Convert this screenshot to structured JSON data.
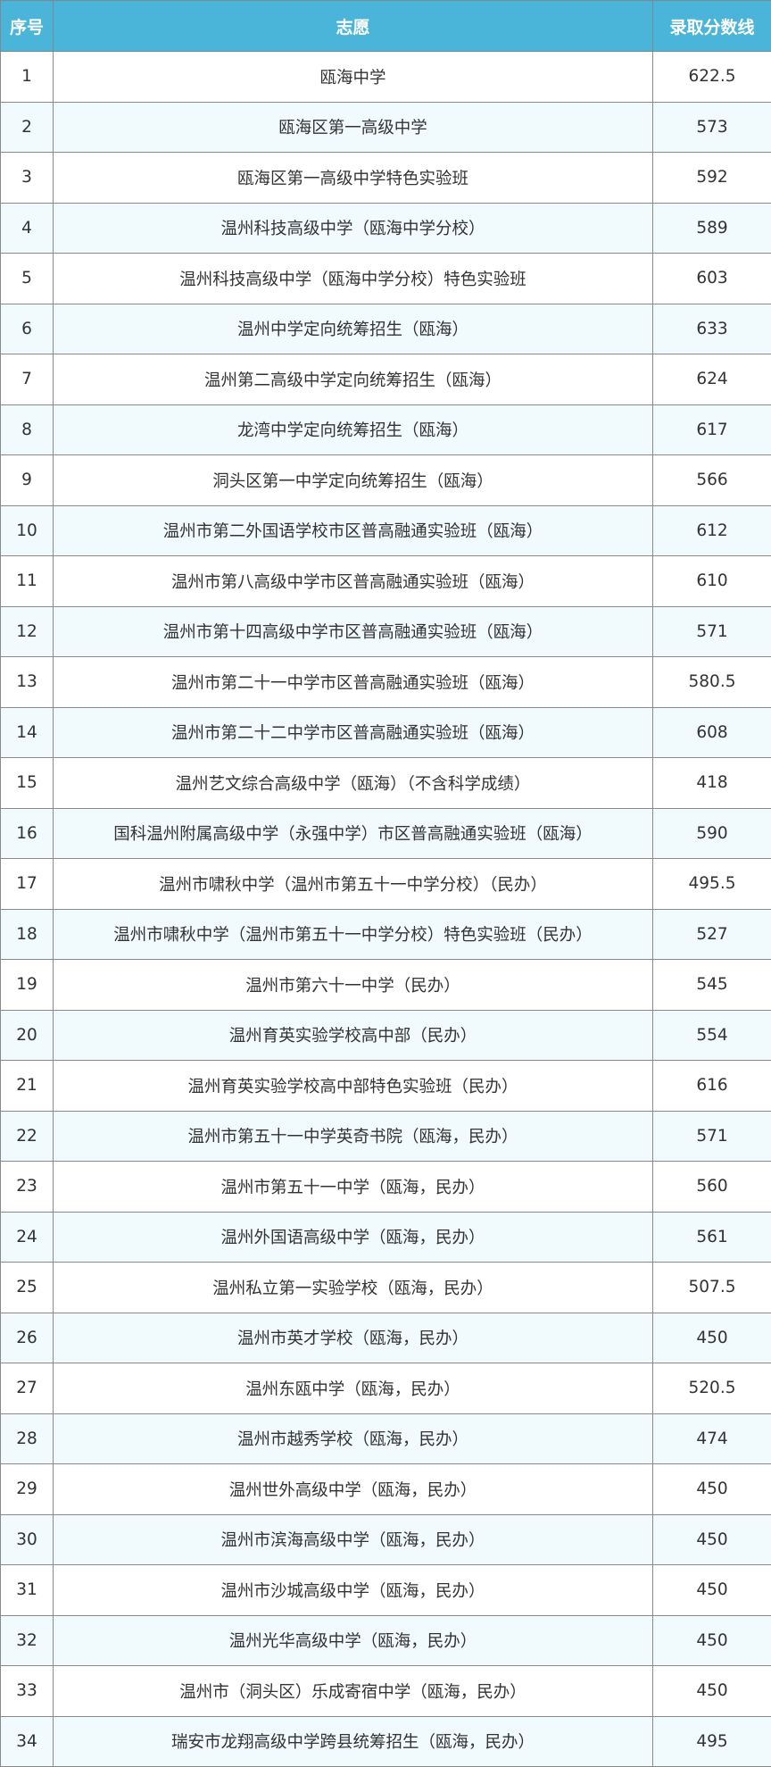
{
  "header": {
    "index": "序号",
    "choice": "志愿",
    "score": "录取分数线"
  },
  "colors": {
    "header_bg": "#4bb4d9",
    "row_alt": "#f1fafc"
  },
  "rows": [
    {
      "no": "1",
      "name": "瓯海中学",
      "score": "622.5"
    },
    {
      "no": "2",
      "name": "瓯海区第一高级中学",
      "score": "573"
    },
    {
      "no": "3",
      "name": "瓯海区第一高级中学特色实验班",
      "score": "592"
    },
    {
      "no": "4",
      "name": "温州科技高级中学（瓯海中学分校）",
      "score": "589"
    },
    {
      "no": "5",
      "name": "温州科技高级中学（瓯海中学分校）特色实验班",
      "score": "603"
    },
    {
      "no": "6",
      "name": "温州中学定向统筹招生（瓯海）",
      "score": "633"
    },
    {
      "no": "7",
      "name": "温州第二高级中学定向统筹招生（瓯海）",
      "score": "624"
    },
    {
      "no": "8",
      "name": "龙湾中学定向统筹招生（瓯海）",
      "score": "617"
    },
    {
      "no": "9",
      "name": "洞头区第一中学定向统筹招生（瓯海）",
      "score": "566"
    },
    {
      "no": "10",
      "name": "温州市第二外国语学校市区普高融通实验班（瓯海）",
      "score": "612"
    },
    {
      "no": "11",
      "name": "温州市第八高级中学市区普高融通实验班（瓯海）",
      "score": "610"
    },
    {
      "no": "12",
      "name": "温州市第十四高级中学市区普高融通实验班（瓯海）",
      "score": "571"
    },
    {
      "no": "13",
      "name": "温州市第二十一中学市区普高融通实验班（瓯海）",
      "score": "580.5"
    },
    {
      "no": "14",
      "name": "温州市第二十二中学市区普高融通实验班（瓯海）",
      "score": "608"
    },
    {
      "no": "15",
      "name": "温州艺文综合高级中学（瓯海）（不含科学成绩）",
      "score": "418"
    },
    {
      "no": "16",
      "name": "国科温州附属高级中学（永强中学）市区普高融通实验班（瓯海）",
      "score": "590"
    },
    {
      "no": "17",
      "name": "温州市啸秋中学（温州市第五十一中学分校）（民办）",
      "score": "495.5"
    },
    {
      "no": "18",
      "name": "温州市啸秋中学（温州市第五十一中学分校）特色实验班（民办）",
      "score": "527"
    },
    {
      "no": "19",
      "name": "温州市第六十一中学（民办）",
      "score": "545"
    },
    {
      "no": "20",
      "name": "温州育英实验学校高中部（民办）",
      "score": "554"
    },
    {
      "no": "21",
      "name": "温州育英实验学校高中部特色实验班（民办）",
      "score": "616"
    },
    {
      "no": "22",
      "name": "温州市第五十一中学英奇书院（瓯海，民办）",
      "score": "571"
    },
    {
      "no": "23",
      "name": "温州市第五十一中学（瓯海，民办）",
      "score": "560"
    },
    {
      "no": "24",
      "name": "温州外国语高级中学（瓯海，民办）",
      "score": "561"
    },
    {
      "no": "25",
      "name": "温州私立第一实验学校（瓯海，民办）",
      "score": "507.5"
    },
    {
      "no": "26",
      "name": "温州市英才学校（瓯海，民办）",
      "score": "450"
    },
    {
      "no": "27",
      "name": "温州东瓯中学（瓯海，民办）",
      "score": "520.5"
    },
    {
      "no": "28",
      "name": "温州市越秀学校（瓯海，民办）",
      "score": "474"
    },
    {
      "no": "29",
      "name": "温州世外高级中学（瓯海，民办）",
      "score": "450"
    },
    {
      "no": "30",
      "name": "温州市滨海高级中学（瓯海，民办）",
      "score": "450"
    },
    {
      "no": "31",
      "name": "温州市沙城高级中学（瓯海，民办）",
      "score": "450"
    },
    {
      "no": "32",
      "name": "温州光华高级中学（瓯海，民办）",
      "score": "450"
    },
    {
      "no": "33",
      "name": "温州市（洞头区）乐成寄宿中学（瓯海，民办）",
      "score": "450"
    },
    {
      "no": "34",
      "name": "瑞安市龙翔高级中学跨县统筹招生（瓯海，民办）",
      "score": "495"
    }
  ]
}
